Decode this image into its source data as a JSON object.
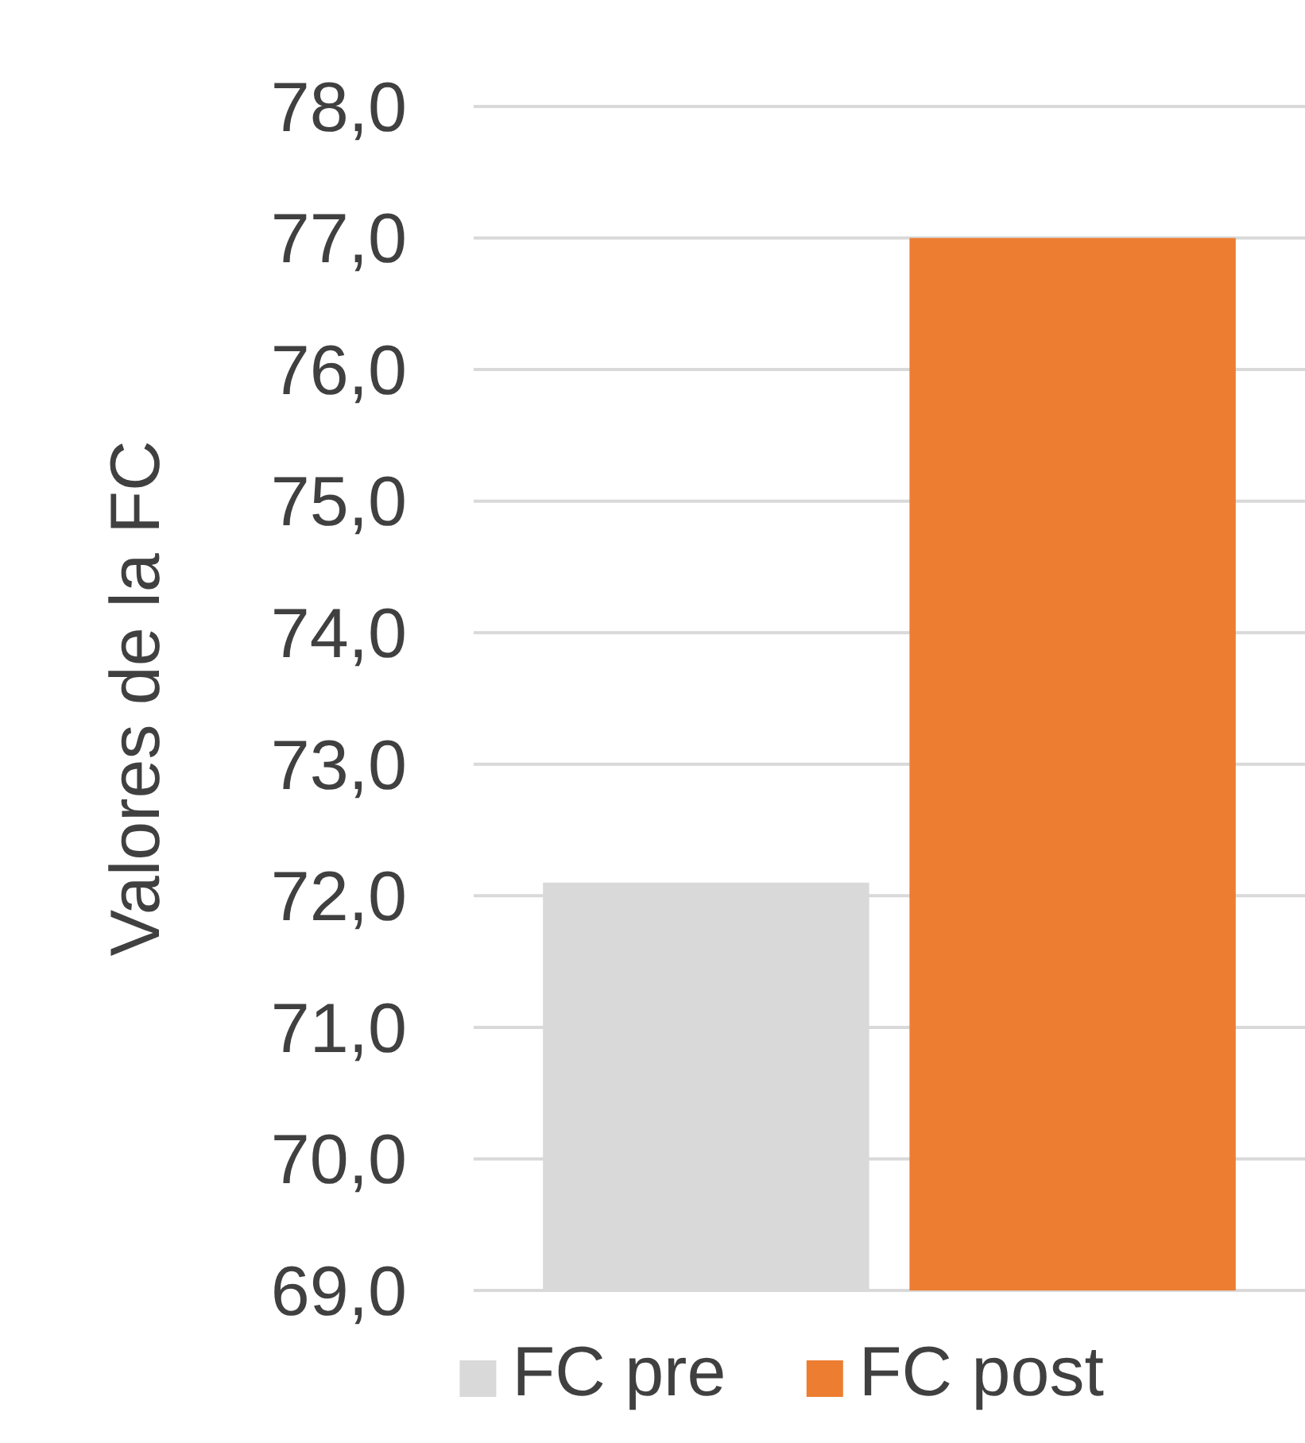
{
  "chart_data": {
    "type": "bar",
    "ylabel": "Valores de la FC",
    "categories": [
      null
    ],
    "series": [
      {
        "name": "FC pre",
        "color": "#d9d9d9",
        "values": [
          72.1
        ]
      },
      {
        "name": "FC post",
        "color": "#ed7d31",
        "values": [
          77.0
        ]
      }
    ],
    "ylim": [
      69,
      78
    ],
    "yticks": [
      {
        "value": 69,
        "label": "69,0"
      },
      {
        "value": 70,
        "label": "70,0"
      },
      {
        "value": 71,
        "label": "71,0"
      },
      {
        "value": 72,
        "label": "72,0"
      },
      {
        "value": 73,
        "label": "73,0"
      },
      {
        "value": 74,
        "label": "74,0"
      },
      {
        "value": 75,
        "label": "75,0"
      },
      {
        "value": 76,
        "label": "76,0"
      },
      {
        "value": 77,
        "label": "77,0"
      },
      {
        "value": 78,
        "label": "78,0"
      }
    ],
    "grid": "y",
    "legend": "bottom"
  }
}
